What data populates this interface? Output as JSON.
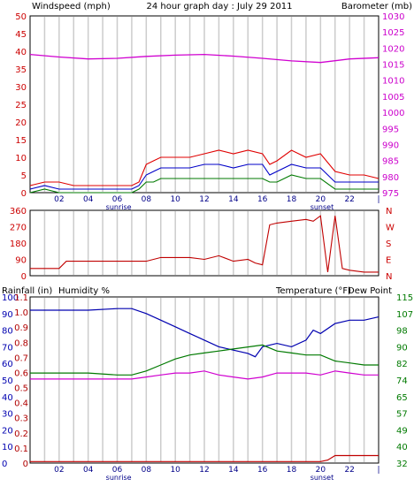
{
  "colors": {
    "wind": "#e00000",
    "wind_avg": "#0000c8",
    "wind_lull": "#007a00",
    "barometer": "#d000d0",
    "direction": "#c00000",
    "rain": "#c00000",
    "humidity": "#0000b0",
    "temperature": "#007a00",
    "dew_point": "#d000d0",
    "rain_label": "#b00000",
    "humidity_label": "#0000b0",
    "temp_label": "#007a00",
    "dew_label": "#d000d0",
    "grid": "#cccccc",
    "axis_text": "#000000"
  },
  "chart_data": [
    {
      "type": "line",
      "name": "wind_barometer",
      "title": "24 hour graph day : July 29 2011",
      "ylabel_left": "Windspeed (mph)",
      "ylabel_right": "Barometer (mb)",
      "ylim_left": [
        0,
        50
      ],
      "yticks_left": [
        "0",
        "5",
        "10",
        "15",
        "20",
        "25",
        "30",
        "35",
        "40",
        "45",
        "50"
      ],
      "ylim_right": [
        975,
        1030
      ],
      "yticks_right": [
        "975",
        "980",
        "985",
        "990",
        "995",
        "1000",
        "1005",
        "1010",
        "1015",
        "1020",
        "1025",
        "1030"
      ],
      "xlim": [
        0,
        24
      ],
      "xticks": [
        "02",
        "04",
        "06",
        "08",
        "10",
        "12",
        "14",
        "16",
        "18",
        "20",
        "22",
        "|"
      ],
      "xtick_hours": [
        2,
        4,
        6,
        8,
        10,
        12,
        14,
        16,
        18,
        20,
        22,
        24
      ],
      "grid_hours": [
        1,
        2,
        3,
        4,
        5,
        6,
        7,
        8,
        9,
        10,
        11,
        12,
        13,
        14,
        15,
        16,
        17,
        18,
        19,
        20,
        21,
        22,
        23
      ],
      "sunrise_label": "sunrise",
      "sunset_label": "sunset",
      "sunrise_hour": 6.1,
      "sunset_hour": 20.1,
      "series": [
        {
          "key": "gust",
          "color_key": "wind",
          "hours": [
            0,
            1,
            2,
            3,
            4,
            5,
            6,
            7,
            7.5,
            8,
            8.5,
            9,
            10,
            11,
            12,
            13,
            14,
            15,
            16,
            16.5,
            17,
            18,
            19,
            20,
            21,
            22,
            23,
            24
          ],
          "values": [
            2,
            3,
            3,
            2,
            2,
            2,
            2,
            2,
            3,
            8,
            9,
            10,
            10,
            10,
            11,
            12,
            11,
            12,
            11,
            8,
            9,
            12,
            10,
            11,
            6,
            5,
            5,
            4
          ]
        },
        {
          "key": "average",
          "color_key": "wind_avg",
          "hours": [
            0,
            1,
            2,
            3,
            4,
            5,
            6,
            7,
            7.5,
            8,
            8.5,
            9,
            10,
            11,
            12,
            13,
            14,
            15,
            16,
            16.5,
            17,
            18,
            19,
            20,
            21,
            22,
            23,
            24
          ],
          "values": [
            1,
            2,
            1,
            1,
            1,
            1,
            1,
            1,
            2,
            5,
            6,
            7,
            7,
            7,
            8,
            8,
            7,
            8,
            8,
            5,
            6,
            8,
            7,
            7,
            3,
            3,
            3,
            3
          ]
        },
        {
          "key": "lull",
          "color_key": "wind_lull",
          "hours": [
            0,
            1,
            2,
            3,
            4,
            5,
            6,
            7,
            7.5,
            8,
            8.5,
            9,
            10,
            11,
            12,
            13,
            14,
            15,
            16,
            16.5,
            17,
            18,
            19,
            20,
            21,
            22,
            23,
            24
          ],
          "values": [
            0,
            1,
            0,
            0,
            0,
            0,
            0,
            0,
            1,
            3,
            3,
            4,
            4,
            4,
            4,
            4,
            4,
            4,
            4,
            3,
            3,
            5,
            4,
            4,
            1,
            1,
            1,
            1
          ]
        },
        {
          "key": "barometer",
          "axis": "right",
          "color_key": "barometer",
          "hours": [
            0,
            2,
            4,
            6,
            8,
            10,
            12,
            14,
            16,
            18,
            20,
            22,
            24
          ],
          "values": [
            1018,
            1017.2,
            1016.6,
            1016.8,
            1017.4,
            1017.8,
            1018,
            1017.5,
            1016.8,
            1016,
            1015.5,
            1016.6,
            1017
          ]
        }
      ]
    },
    {
      "type": "line",
      "name": "wind_direction",
      "ylim": [
        0,
        360
      ],
      "yticks": [
        "0",
        "90",
        "180",
        "270",
        "360"
      ],
      "direction_labels": [
        "N",
        "E",
        "S",
        "W",
        "N"
      ],
      "xlim": [
        0,
        24
      ],
      "series": [
        {
          "key": "direction",
          "color_key": "direction",
          "hours": [
            0,
            1,
            2,
            2.5,
            3,
            4,
            5,
            6,
            7,
            8,
            9,
            10,
            11,
            12,
            13,
            14,
            15,
            15.5,
            16,
            16.5,
            17,
            18,
            19,
            19.5,
            20,
            20.5,
            21,
            21.5,
            22,
            23,
            24
          ],
          "values": [
            40,
            40,
            40,
            80,
            80,
            80,
            80,
            80,
            80,
            80,
            100,
            100,
            100,
            90,
            110,
            80,
            90,
            70,
            60,
            280,
            290,
            300,
            310,
            300,
            330,
            20,
            330,
            40,
            30,
            20,
            20
          ]
        }
      ]
    },
    {
      "type": "line",
      "name": "rain_humidity_temperature",
      "ylabel_left_1": "Rainfall (in)",
      "ylabel_left_2": "Humidity %",
      "ylabel_right_1": "Temperature (°F)",
      "ylabel_right_2": "Dew Point",
      "rain_ticks": [
        "0",
        "0.1",
        "0.2",
        "0.3",
        "0.4",
        "0.5",
        "0.6",
        "0.7",
        "0.8",
        "0.9",
        "1.0",
        "1.1"
      ],
      "humidity_ticks": [
        "0",
        "10",
        "20",
        "30",
        "40",
        "50",
        "60",
        "70",
        "80",
        "90",
        "100"
      ],
      "temp_ticks": [
        "32",
        "40",
        "49",
        "57",
        "65",
        "74",
        "82",
        "90",
        "98",
        "107",
        "115"
      ],
      "ylim_humidity": [
        0,
        100
      ],
      "ylim_temp": [
        32,
        115
      ],
      "ylim_rain": [
        0,
        1.1
      ],
      "xlim": [
        0,
        24
      ],
      "series": [
        {
          "key": "humidity",
          "color_key": "humidity",
          "axis": "humidity",
          "hours": [
            0,
            2,
            4,
            6,
            7,
            8,
            9,
            10,
            11,
            12,
            13,
            14,
            15,
            15.5,
            16,
            17,
            18,
            19,
            19.5,
            20,
            21,
            22,
            23,
            24
          ],
          "values": [
            92,
            92,
            92,
            93,
            93,
            90,
            86,
            82,
            78,
            74,
            70,
            68,
            66,
            64,
            70,
            72,
            70,
            74,
            80,
            78,
            84,
            86,
            86,
            88
          ]
        },
        {
          "key": "temperature",
          "axis": "temp",
          "color_key": "temperature",
          "hours": [
            0,
            2,
            4,
            6,
            7,
            8,
            9,
            10,
            11,
            12,
            13,
            14,
            15,
            16,
            17,
            18,
            19,
            20,
            21,
            22,
            23,
            24
          ],
          "values": [
            77,
            77,
            77,
            76,
            76,
            78,
            81,
            84,
            86,
            87,
            88,
            89,
            90,
            91,
            88,
            87,
            86,
            86,
            83,
            82,
            81,
            81
          ]
        },
        {
          "key": "dew_point",
          "axis": "temp",
          "color_key": "dew_point",
          "hours": [
            0,
            2,
            4,
            6,
            7,
            8,
            9,
            10,
            11,
            12,
            13,
            14,
            15,
            16,
            17,
            18,
            19,
            20,
            21,
            22,
            23,
            24
          ],
          "values": [
            74,
            74,
            74,
            74,
            74,
            75,
            76,
            77,
            77,
            78,
            76,
            75,
            74,
            75,
            77,
            77,
            77,
            76,
            78,
            77,
            76,
            76
          ]
        },
        {
          "key": "rain",
          "axis": "rain",
          "color_key": "rain",
          "hours": [
            0,
            2,
            4,
            6,
            8,
            10,
            12,
            14,
            16,
            18,
            20,
            20.5,
            21,
            22,
            24
          ],
          "values": [
            0.01,
            0.01,
            0.01,
            0.01,
            0.01,
            0.01,
            0.01,
            0.01,
            0.01,
            0.01,
            0.01,
            0.02,
            0.05,
            0.05,
            0.05
          ]
        }
      ]
    }
  ]
}
